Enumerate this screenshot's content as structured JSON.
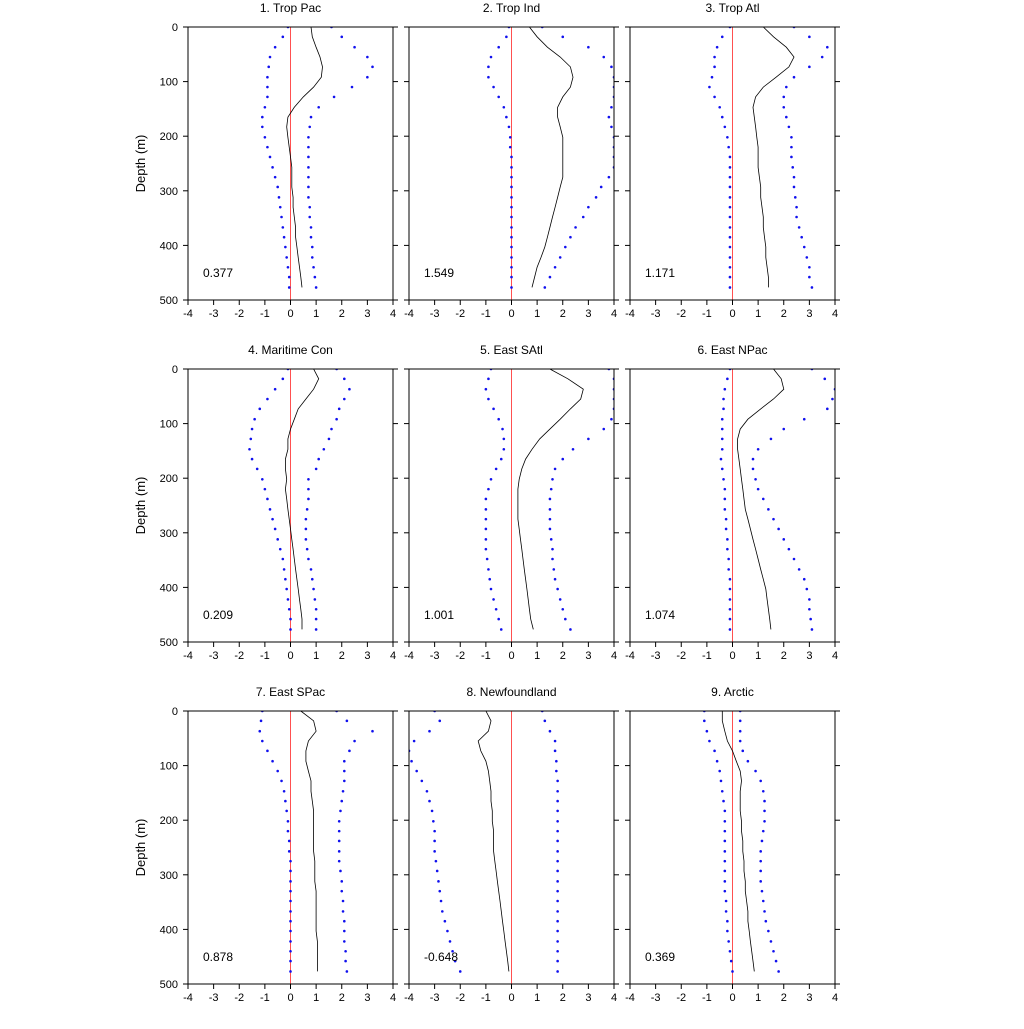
{
  "chart_data": {
    "type": "line",
    "layout": "3x3 grid of profile panels",
    "xlim": [
      -4,
      4
    ],
    "ylim": [
      0,
      500
    ],
    "y_inverted": true,
    "xticks": [
      -4,
      -3,
      -2,
      -1,
      0,
      1,
      2,
      3,
      4
    ],
    "yticks": [
      0,
      100,
      200,
      300,
      400,
      500
    ],
    "ylabel": "Depth (m)",
    "depths": [
      0,
      18,
      37,
      55,
      73,
      92,
      110,
      128,
      147,
      165,
      183,
      202,
      220,
      238,
      257,
      275,
      293,
      312,
      330,
      348,
      367,
      385,
      403,
      422,
      440,
      458,
      477
    ],
    "colors": {
      "mean_line": "#000000",
      "bounds": "#1010ee",
      "zero_line": "#ff5050",
      "axes": "#000000"
    },
    "panels": [
      {
        "title": "1. Trop Pac",
        "value_label": "0.377",
        "mean": [
          0.8,
          0.85,
          1.0,
          1.15,
          1.25,
          1.2,
          0.9,
          0.5,
          0.15,
          -0.1,
          -0.15,
          -0.1,
          -0.05,
          0.0,
          0.05,
          0.05,
          0.05,
          0.1,
          0.1,
          0.15,
          0.2,
          0.2,
          0.25,
          0.3,
          0.35,
          0.4,
          0.45
        ],
        "upper": [
          1.6,
          2.0,
          2.5,
          3.0,
          3.2,
          3.0,
          2.4,
          1.7,
          1.1,
          0.8,
          0.75,
          0.7,
          0.7,
          0.7,
          0.7,
          0.7,
          0.7,
          0.7,
          0.75,
          0.75,
          0.8,
          0.8,
          0.85,
          0.85,
          0.9,
          0.95,
          1.0
        ],
        "lower": [
          -0.1,
          -0.3,
          -0.6,
          -0.8,
          -0.85,
          -0.9,
          -0.9,
          -0.9,
          -1.0,
          -1.1,
          -1.1,
          -1.0,
          -0.9,
          -0.8,
          -0.7,
          -0.6,
          -0.5,
          -0.45,
          -0.4,
          -0.35,
          -0.3,
          -0.25,
          -0.2,
          -0.15,
          -0.1,
          -0.05,
          -0.05
        ]
      },
      {
        "title": "2. Trop Ind",
        "value_label": "1.549",
        "mean": [
          0.7,
          1.0,
          1.4,
          1.9,
          2.3,
          2.4,
          2.3,
          2.0,
          1.8,
          1.8,
          1.9,
          2.0,
          2.0,
          2.0,
          2.0,
          2.0,
          1.9,
          1.8,
          1.7,
          1.6,
          1.5,
          1.4,
          1.3,
          1.15,
          1.0,
          0.9,
          0.8
        ],
        "upper": [
          1.2,
          2.0,
          3.0,
          3.6,
          3.9,
          4.0,
          4.0,
          4.0,
          3.9,
          3.8,
          3.9,
          4.0,
          4.0,
          4.0,
          4.0,
          3.8,
          3.5,
          3.3,
          3.0,
          2.8,
          2.5,
          2.3,
          2.1,
          1.9,
          1.7,
          1.5,
          1.3
        ],
        "lower": [
          -0.1,
          -0.2,
          -0.5,
          -0.8,
          -0.9,
          -0.9,
          -0.7,
          -0.5,
          -0.3,
          -0.2,
          -0.1,
          -0.05,
          -0.05,
          0.0,
          0.0,
          0.0,
          0.0,
          0.0,
          0.0,
          0.0,
          0.0,
          0.0,
          0.0,
          0.0,
          0.0,
          0.0,
          0.0
        ]
      },
      {
        "title": "3. Trop Atl",
        "value_label": "1.171",
        "mean": [
          1.2,
          1.6,
          2.1,
          2.4,
          2.2,
          1.7,
          1.2,
          0.9,
          0.8,
          0.85,
          0.9,
          0.95,
          1.0,
          1.0,
          1.0,
          1.05,
          1.1,
          1.1,
          1.15,
          1.2,
          1.2,
          1.25,
          1.3,
          1.3,
          1.35,
          1.4,
          1.4
        ],
        "upper": [
          2.4,
          3.0,
          3.7,
          3.5,
          3.0,
          2.4,
          2.1,
          2.0,
          2.0,
          2.1,
          2.2,
          2.3,
          2.3,
          2.3,
          2.35,
          2.4,
          2.4,
          2.45,
          2.5,
          2.5,
          2.6,
          2.7,
          2.8,
          2.9,
          3.0,
          3.0,
          3.1
        ],
        "lower": [
          -0.1,
          -0.4,
          -0.6,
          -0.7,
          -0.7,
          -0.8,
          -0.9,
          -0.7,
          -0.5,
          -0.4,
          -0.3,
          -0.2,
          -0.15,
          -0.1,
          -0.1,
          -0.1,
          -0.1,
          -0.1,
          -0.1,
          -0.1,
          -0.1,
          -0.1,
          -0.1,
          -0.1,
          -0.1,
          -0.1,
          -0.1
        ]
      },
      {
        "title": "4. Maritime Con",
        "value_label": "0.209",
        "mean": [
          0.9,
          1.1,
          0.9,
          0.6,
          0.3,
          0.15,
          0.0,
          -0.1,
          -0.1,
          -0.2,
          -0.2,
          -0.15,
          -0.2,
          -0.15,
          -0.1,
          -0.05,
          0.0,
          0.05,
          0.1,
          0.15,
          0.2,
          0.25,
          0.3,
          0.35,
          0.4,
          0.45,
          0.45
        ],
        "upper": [
          1.8,
          2.1,
          2.3,
          2.1,
          1.9,
          1.8,
          1.6,
          1.5,
          1.3,
          1.1,
          1.0,
          0.7,
          0.7,
          0.7,
          0.65,
          0.6,
          0.6,
          0.6,
          0.65,
          0.7,
          0.8,
          0.85,
          0.9,
          0.95,
          1.0,
          1.0,
          1.0
        ],
        "lower": [
          -0.1,
          -0.3,
          -0.6,
          -0.9,
          -1.2,
          -1.4,
          -1.5,
          -1.55,
          -1.6,
          -1.5,
          -1.3,
          -1.1,
          -1.0,
          -0.9,
          -0.8,
          -0.7,
          -0.6,
          -0.5,
          -0.4,
          -0.3,
          -0.25,
          -0.2,
          -0.15,
          -0.1,
          -0.05,
          0.0,
          0.0
        ]
      },
      {
        "title": "5. East SAtl",
        "value_label": "1.001",
        "mean": [
          1.5,
          2.2,
          2.8,
          2.7,
          2.3,
          1.9,
          1.5,
          1.1,
          0.8,
          0.55,
          0.4,
          0.3,
          0.25,
          0.25,
          0.25,
          0.25,
          0.3,
          0.35,
          0.4,
          0.45,
          0.5,
          0.55,
          0.6,
          0.65,
          0.7,
          0.75,
          0.85
        ],
        "upper": [
          3.8,
          4.0,
          4.0,
          4.0,
          4.0,
          3.9,
          3.6,
          3.0,
          2.4,
          2.0,
          1.7,
          1.6,
          1.55,
          1.5,
          1.5,
          1.5,
          1.5,
          1.55,
          1.6,
          1.6,
          1.65,
          1.7,
          1.8,
          1.9,
          2.0,
          2.1,
          2.3
        ],
        "lower": [
          -0.8,
          -0.9,
          -1.0,
          -0.9,
          -0.7,
          -0.5,
          -0.35,
          -0.3,
          -0.3,
          -0.4,
          -0.6,
          -0.8,
          -0.9,
          -1.0,
          -1.0,
          -1.0,
          -1.0,
          -1.0,
          -1.0,
          -0.95,
          -0.9,
          -0.85,
          -0.8,
          -0.7,
          -0.6,
          -0.5,
          -0.4
        ]
      },
      {
        "title": "6. East NPac",
        "value_label": "1.074",
        "mean": [
          1.6,
          1.9,
          2.0,
          1.6,
          1.1,
          0.6,
          0.3,
          0.2,
          0.2,
          0.25,
          0.3,
          0.35,
          0.4,
          0.45,
          0.5,
          0.6,
          0.7,
          0.8,
          0.9,
          1.0,
          1.1,
          1.2,
          1.3,
          1.35,
          1.4,
          1.45,
          1.5
        ],
        "upper": [
          3.1,
          3.6,
          4.0,
          3.9,
          3.7,
          2.8,
          2.0,
          1.5,
          1.0,
          0.8,
          0.8,
          0.9,
          1.0,
          1.2,
          1.4,
          1.6,
          1.8,
          2.0,
          2.2,
          2.4,
          2.6,
          2.8,
          2.9,
          3.0,
          3.0,
          3.05,
          3.1
        ],
        "lower": [
          -0.1,
          -0.2,
          -0.3,
          -0.35,
          -0.35,
          -0.4,
          -0.4,
          -0.4,
          -0.4,
          -0.45,
          -0.4,
          -0.35,
          -0.3,
          -0.3,
          -0.3,
          -0.25,
          -0.25,
          -0.2,
          -0.2,
          -0.15,
          -0.15,
          -0.1,
          -0.1,
          -0.1,
          -0.1,
          -0.1,
          -0.1
        ]
      },
      {
        "title": "7. East SPac",
        "value_label": "0.878",
        "mean": [
          0.4,
          0.9,
          1.0,
          0.7,
          0.6,
          0.6,
          0.7,
          0.8,
          0.8,
          0.85,
          0.9,
          0.9,
          0.9,
          0.9,
          0.9,
          0.95,
          0.95,
          0.95,
          1.0,
          1.0,
          1.0,
          1.0,
          1.0,
          1.05,
          1.05,
          1.05,
          1.05
        ],
        "upper": [
          1.8,
          2.2,
          3.2,
          2.5,
          2.3,
          2.1,
          2.1,
          2.1,
          2.05,
          2.0,
          1.95,
          1.9,
          1.9,
          1.9,
          1.9,
          1.9,
          1.95,
          2.0,
          2.0,
          2.05,
          2.05,
          2.1,
          2.1,
          2.1,
          2.15,
          2.15,
          2.2
        ],
        "lower": [
          -1.1,
          -1.15,
          -1.2,
          -1.1,
          -0.9,
          -0.7,
          -0.5,
          -0.35,
          -0.25,
          -0.2,
          -0.15,
          -0.1,
          -0.1,
          -0.05,
          -0.05,
          0.0,
          0.0,
          0.0,
          0.0,
          0.0,
          0.0,
          0.0,
          0.0,
          0.0,
          0.0,
          0.0,
          0.0
        ]
      },
      {
        "title": "8. Newfoundland",
        "value_label": "-0.648",
        "mean": [
          -1.0,
          -0.8,
          -0.9,
          -1.3,
          -1.2,
          -1.0,
          -0.9,
          -0.85,
          -0.8,
          -0.8,
          -0.75,
          -0.75,
          -0.7,
          -0.7,
          -0.7,
          -0.65,
          -0.6,
          -0.55,
          -0.5,
          -0.45,
          -0.4,
          -0.35,
          -0.3,
          -0.25,
          -0.2,
          -0.15,
          -0.1
        ],
        "upper": [
          1.2,
          1.3,
          1.5,
          1.7,
          1.7,
          1.75,
          1.75,
          1.8,
          1.8,
          1.8,
          1.8,
          1.8,
          1.8,
          1.8,
          1.8,
          1.8,
          1.8,
          1.8,
          1.8,
          1.8,
          1.8,
          1.8,
          1.8,
          1.8,
          1.8,
          1.8,
          1.8
        ],
        "lower": [
          -3.0,
          -2.8,
          -3.2,
          -3.8,
          -4.0,
          -3.9,
          -3.7,
          -3.5,
          -3.3,
          -3.2,
          -3.1,
          -3.05,
          -3.0,
          -3.0,
          -3.0,
          -2.95,
          -2.9,
          -2.85,
          -2.8,
          -2.75,
          -2.7,
          -2.6,
          -2.5,
          -2.4,
          -2.3,
          -2.2,
          -2.0
        ]
      },
      {
        "title": "9. Arctic",
        "value_label": "0.369",
        "mean": [
          -0.4,
          -0.4,
          -0.3,
          -0.2,
          0.0,
          0.15,
          0.3,
          0.35,
          0.3,
          0.3,
          0.3,
          0.35,
          0.35,
          0.4,
          0.4,
          0.45,
          0.45,
          0.5,
          0.5,
          0.55,
          0.6,
          0.6,
          0.65,
          0.7,
          0.75,
          0.8,
          0.85
        ],
        "upper": [
          0.3,
          0.3,
          0.3,
          0.3,
          0.4,
          0.6,
          0.9,
          1.1,
          1.2,
          1.25,
          1.25,
          1.25,
          1.2,
          1.15,
          1.1,
          1.1,
          1.1,
          1.1,
          1.15,
          1.2,
          1.25,
          1.3,
          1.4,
          1.5,
          1.6,
          1.7,
          1.8
        ],
        "lower": [
          -1.1,
          -1.1,
          -1.0,
          -0.9,
          -0.7,
          -0.6,
          -0.5,
          -0.45,
          -0.4,
          -0.35,
          -0.3,
          -0.3,
          -0.3,
          -0.3,
          -0.3,
          -0.3,
          -0.3,
          -0.3,
          -0.3,
          -0.25,
          -0.25,
          -0.2,
          -0.2,
          -0.15,
          -0.1,
          -0.05,
          0.0
        ]
      }
    ]
  }
}
